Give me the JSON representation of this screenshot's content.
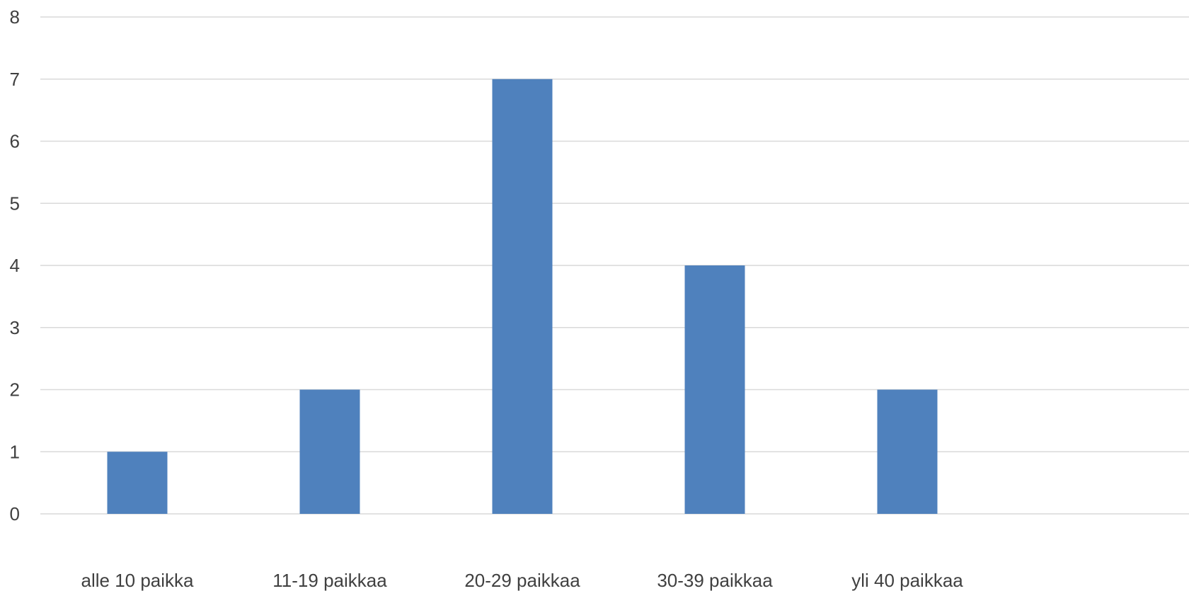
{
  "chart_data": {
    "type": "bar",
    "categories": [
      "alle 10 paikka",
      "11-19 paikkaa",
      "20-29 paikkaa",
      "30-39 paikkaa",
      "yli 40 paikkaa"
    ],
    "values": [
      1,
      2,
      7,
      4,
      2
    ],
    "title": "",
    "xlabel": "",
    "ylabel": "",
    "ylim": [
      0,
      8
    ],
    "yticks": [
      0,
      1,
      2,
      3,
      4,
      5,
      6,
      7,
      8
    ],
    "grid": true,
    "legend": "none",
    "bar_color": "#4f81bd",
    "grid_color": "#d9d9d9",
    "label_color": "#404040"
  }
}
